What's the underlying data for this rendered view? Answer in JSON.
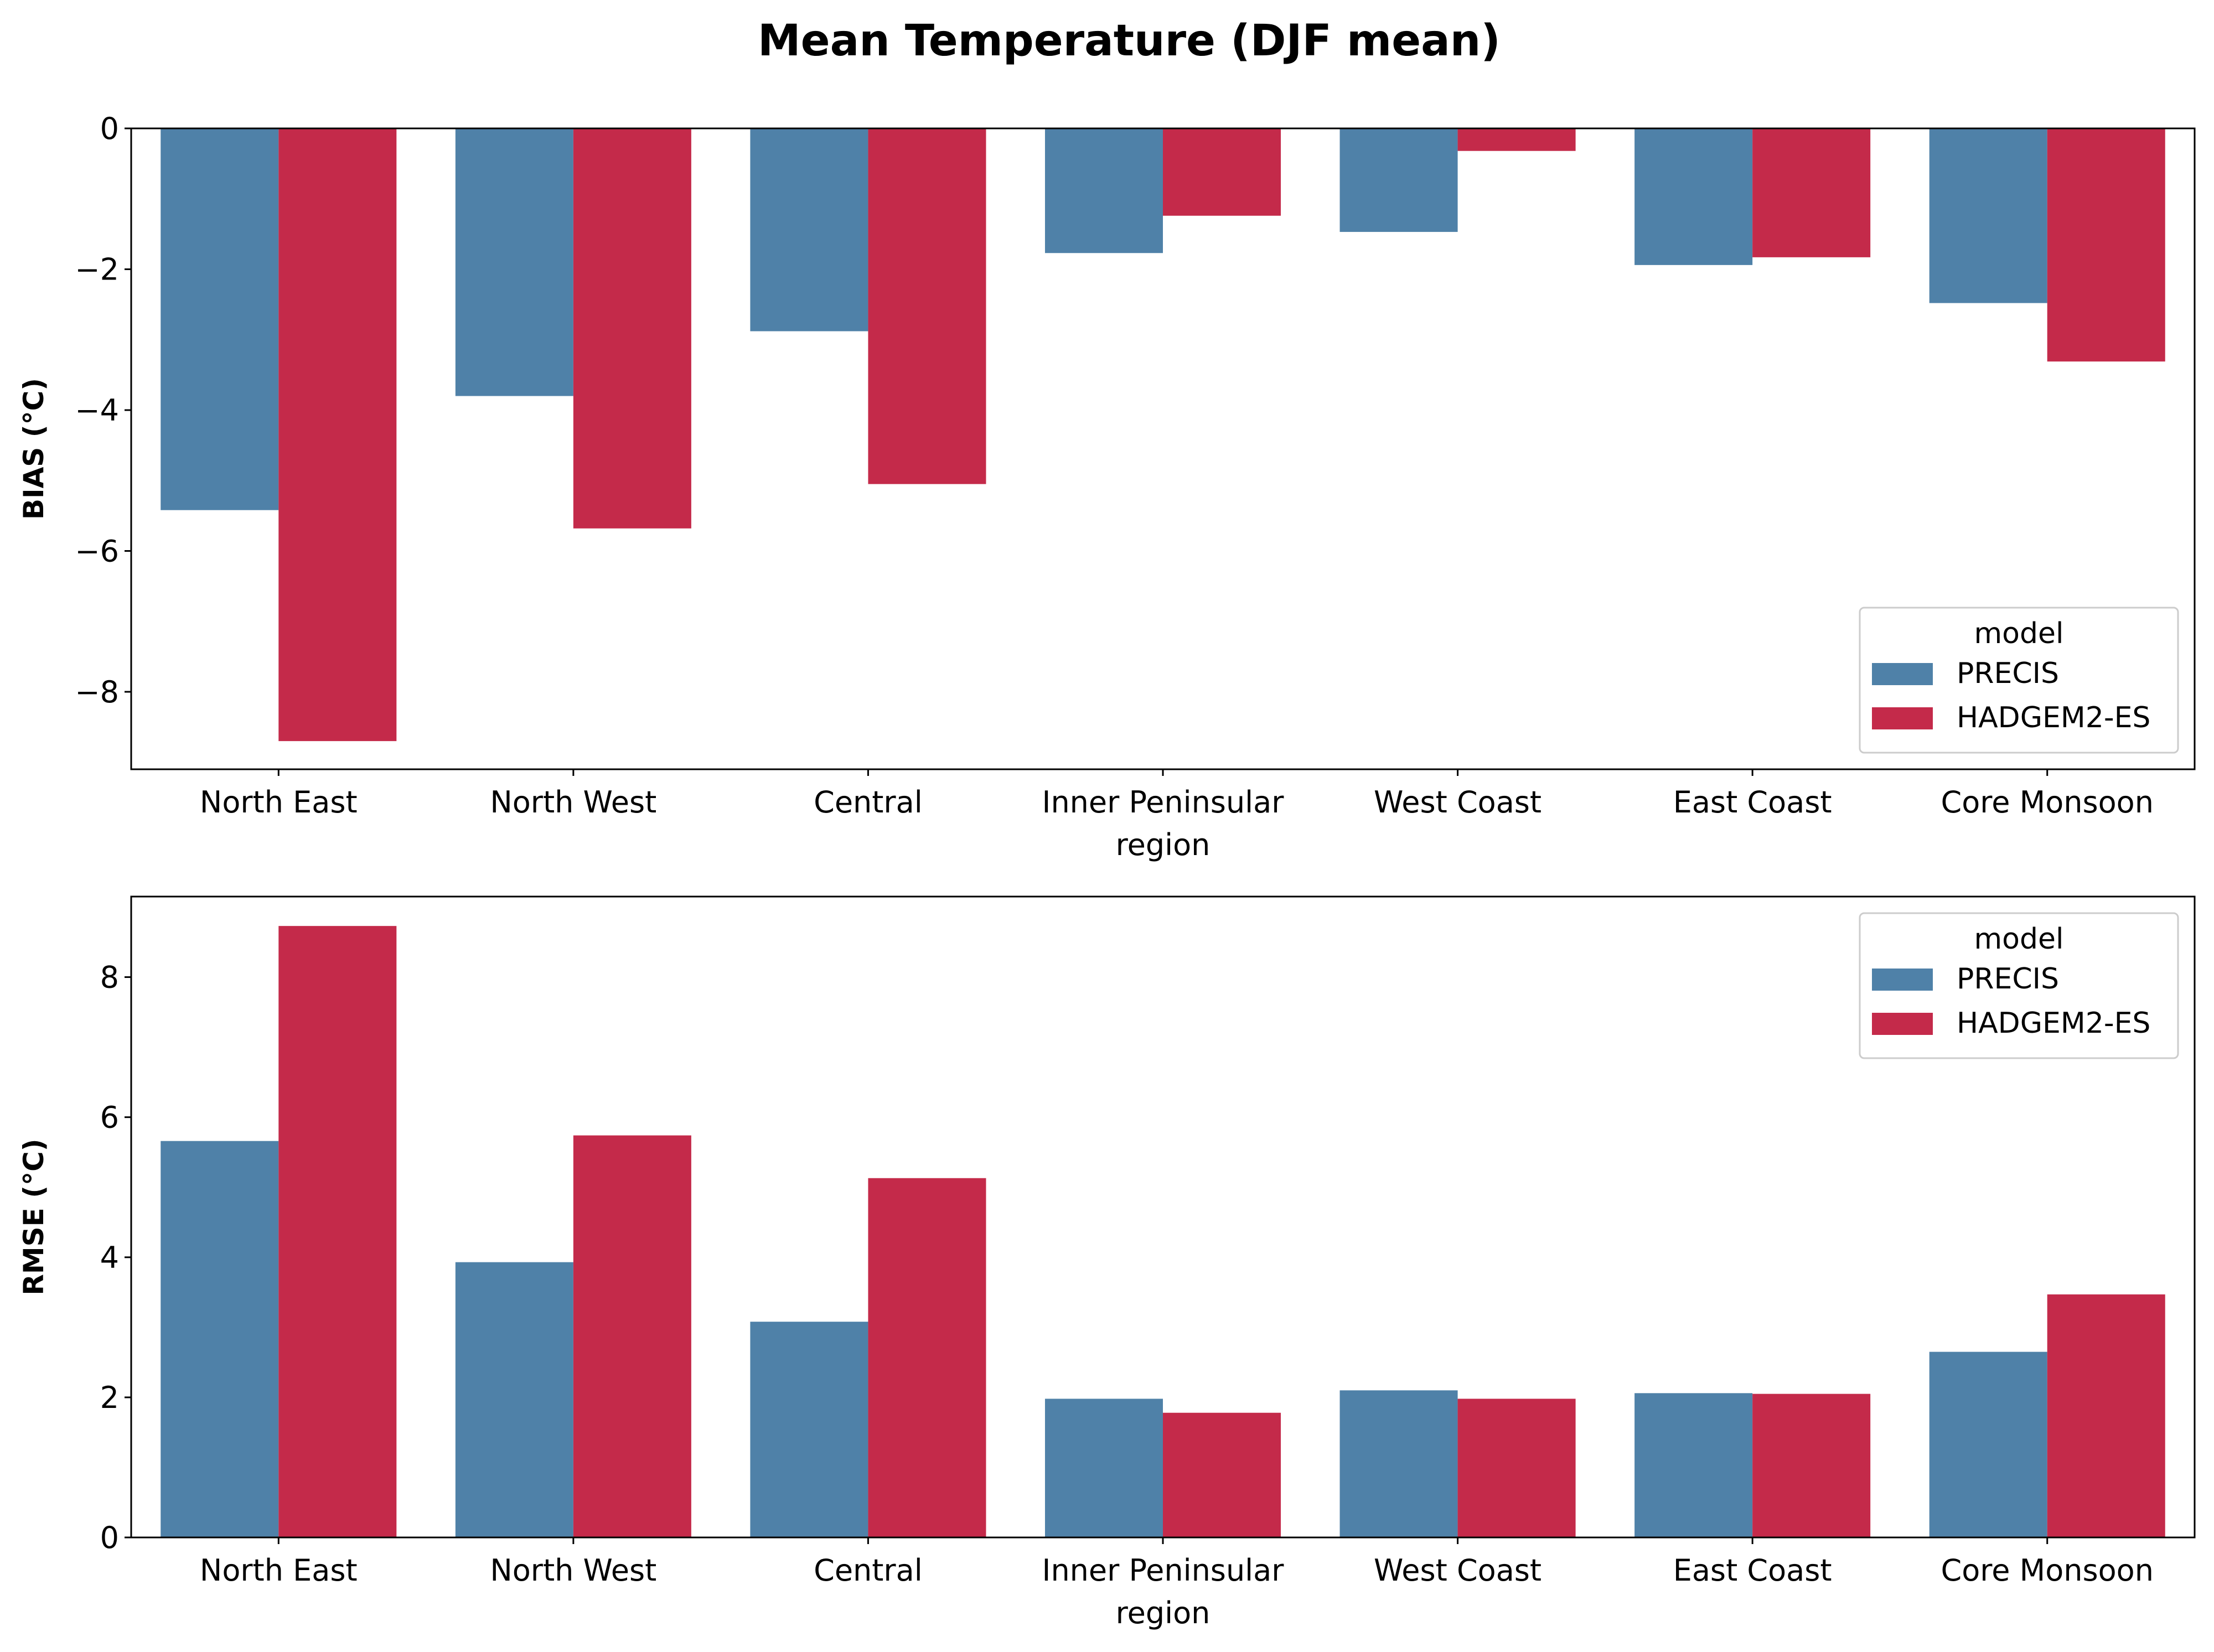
{
  "title": "Mean Temperature (DJF mean)",
  "colors": {
    "PRECIS": "#4f81a8",
    "HADGEM2-ES": "#c42a4a"
  },
  "chart_data": [
    {
      "type": "bar",
      "ylabel": "BIAS ($^\\circ$C)",
      "ylabel_display": "BIAS (°C)",
      "xlabel": "region",
      "ylim": [
        -9.1,
        0
      ],
      "yticks": [
        0,
        -2,
        -4,
        -6,
        -8
      ],
      "ytick_labels": [
        "0",
        "−2",
        "−4",
        "−6",
        "−8"
      ],
      "categories": [
        "North East",
        "North West",
        "Central",
        "Inner Peninsular",
        "West Coast",
        "East Coast",
        "Core Monsoon"
      ],
      "legend": {
        "title": "model",
        "position": "lower-right"
      },
      "series": [
        {
          "name": "PRECIS",
          "values": [
            -5.42,
            -3.8,
            -2.88,
            -1.77,
            -1.47,
            -1.94,
            -2.48
          ]
        },
        {
          "name": "HADGEM2-ES",
          "values": [
            -8.7,
            -5.68,
            -5.05,
            -1.24,
            -0.32,
            -1.83,
            -3.31
          ]
        }
      ]
    },
    {
      "type": "bar",
      "ylabel": "RMSE ($^\\circ$C)",
      "ylabel_display": "RMSE (°C)",
      "xlabel": "region",
      "ylim": [
        0,
        9.15
      ],
      "yticks": [
        0,
        2,
        4,
        6,
        8
      ],
      "ytick_labels": [
        "0",
        "2",
        "4",
        "6",
        "8"
      ],
      "categories": [
        "North East",
        "North West",
        "Central",
        "Inner Peninsular",
        "West Coast",
        "East Coast",
        "Core Monsoon"
      ],
      "legend": {
        "title": "model",
        "position": "upper-right"
      },
      "series": [
        {
          "name": "PRECIS",
          "values": [
            5.66,
            3.93,
            3.08,
            1.98,
            2.1,
            2.06,
            2.65
          ]
        },
        {
          "name": "HADGEM2-ES",
          "values": [
            8.73,
            5.74,
            5.13,
            1.78,
            1.98,
            2.05,
            3.47
          ]
        }
      ]
    }
  ]
}
